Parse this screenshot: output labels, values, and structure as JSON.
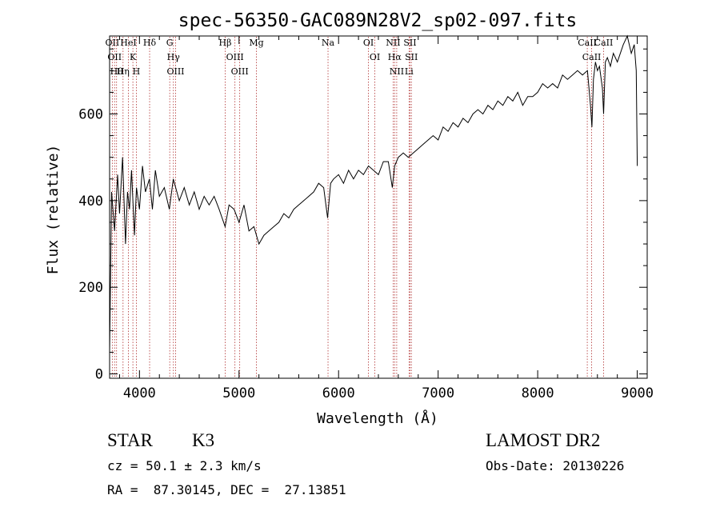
{
  "chart_data": {
    "type": "line",
    "title": "spec-56350-GAC089N28V2_sp02-097.fits",
    "xlabel": "Wavelength (Å)",
    "ylabel": "Flux (relative)",
    "xlim": [
      3700,
      9100
    ],
    "ylim": [
      -10,
      780
    ],
    "xticks": [
      4000,
      5000,
      6000,
      7000,
      8000,
      9000
    ],
    "yticks": [
      0,
      200,
      400,
      600
    ],
    "grid": false,
    "series": [
      {
        "color": "#000000",
        "x": [
          3700,
          3720,
          3750,
          3780,
          3800,
          3830,
          3860,
          3880,
          3900,
          3920,
          3950,
          3970,
          4000,
          4030,
          4060,
          4100,
          4130,
          4160,
          4200,
          4250,
          4300,
          4340,
          4400,
          4450,
          4500,
          4550,
          4600,
          4650,
          4700,
          4750,
          4800,
          4860,
          4900,
          4950,
          5000,
          5050,
          5100,
          5150,
          5200,
          5250,
          5300,
          5350,
          5400,
          5450,
          5500,
          5550,
          5600,
          5650,
          5700,
          5750,
          5800,
          5850,
          5890,
          5920,
          5950,
          6000,
          6050,
          6100,
          6150,
          6200,
          6250,
          6300,
          6350,
          6400,
          6450,
          6500,
          6540,
          6563,
          6600,
          6650,
          6700,
          6750,
          6800,
          6850,
          6900,
          6950,
          7000,
          7050,
          7100,
          7150,
          7200,
          7250,
          7300,
          7350,
          7400,
          7450,
          7500,
          7550,
          7600,
          7650,
          7700,
          7750,
          7800,
          7850,
          7900,
          7950,
          8000,
          8050,
          8100,
          8150,
          8200,
          8250,
          8300,
          8350,
          8400,
          8450,
          8500,
          8530,
          8545,
          8560,
          8580,
          8600,
          8620,
          8650,
          8662,
          8680,
          8700,
          8730,
          8760,
          8800,
          8830,
          8860,
          8900,
          8940,
          8970,
          8990,
          9000
        ],
        "y": [
          50,
          420,
          330,
          460,
          370,
          500,
          300,
          420,
          380,
          470,
          320,
          430,
          380,
          480,
          420,
          450,
          380,
          470,
          410,
          430,
          380,
          450,
          400,
          430,
          390,
          420,
          380,
          410,
          390,
          410,
          380,
          340,
          390,
          380,
          350,
          390,
          330,
          340,
          300,
          320,
          330,
          340,
          350,
          370,
          360,
          380,
          390,
          400,
          410,
          420,
          440,
          430,
          360,
          440,
          450,
          460,
          440,
          470,
          450,
          470,
          460,
          480,
          470,
          460,
          490,
          490,
          430,
          480,
          500,
          510,
          500,
          510,
          520,
          530,
          540,
          550,
          540,
          570,
          560,
          580,
          570,
          590,
          580,
          600,
          610,
          600,
          620,
          610,
          630,
          620,
          640,
          630,
          650,
          620,
          640,
          640,
          650,
          670,
          660,
          670,
          660,
          690,
          680,
          690,
          700,
          690,
          700,
          620,
          570,
          680,
          720,
          700,
          710,
          660,
          600,
          720,
          730,
          710,
          740,
          720,
          740,
          760,
          780,
          740,
          760,
          700,
          480
        ]
      }
    ],
    "lines": [
      {
        "x": 3727,
        "label": "OII"
      },
      {
        "x": 3750,
        "label": "OII"
      },
      {
        "x": 3770,
        "label": "Hθ"
      },
      {
        "x": 3835,
        "label": "Hη"
      },
      {
        "x": 3889,
        "label": "HeI"
      },
      {
        "x": 3934,
        "label": "K"
      },
      {
        "x": 3969,
        "label": "H"
      },
      {
        "x": 4102,
        "label": "Hδ"
      },
      {
        "x": 4304,
        "label": "G"
      },
      {
        "x": 4341,
        "label": "Hγ"
      },
      {
        "x": 4363,
        "label": "OIII"
      },
      {
        "x": 4861,
        "label": "Hβ"
      },
      {
        "x": 4959,
        "label": "OIII"
      },
      {
        "x": 5007,
        "label": "OIII"
      },
      {
        "x": 5175,
        "label": "Mg"
      },
      {
        "x": 5894,
        "label": "Na"
      },
      {
        "x": 6300,
        "label": "OI"
      },
      {
        "x": 6364,
        "label": "OI"
      },
      {
        "x": 6548,
        "label": "NII"
      },
      {
        "x": 6563,
        "label": "Hα"
      },
      {
        "x": 6584,
        "label": "NII"
      },
      {
        "x": 6708,
        "label": "Li"
      },
      {
        "x": 6717,
        "label": "SII"
      },
      {
        "x": 6731,
        "label": "SII"
      },
      {
        "x": 8498,
        "label": "CaII"
      },
      {
        "x": 8542,
        "label": "CaII"
      },
      {
        "x": 8662,
        "label": "CaII"
      }
    ]
  },
  "footer": {
    "class_label": "STAR",
    "subclass": "K3",
    "velocity": "cz = 50.1 ± 2.3 km/s",
    "coords": "RA =  87.30145, DEC =  27.13851",
    "survey": "LAMOST DR2",
    "obs_date": "Obs-Date: 20130226"
  }
}
